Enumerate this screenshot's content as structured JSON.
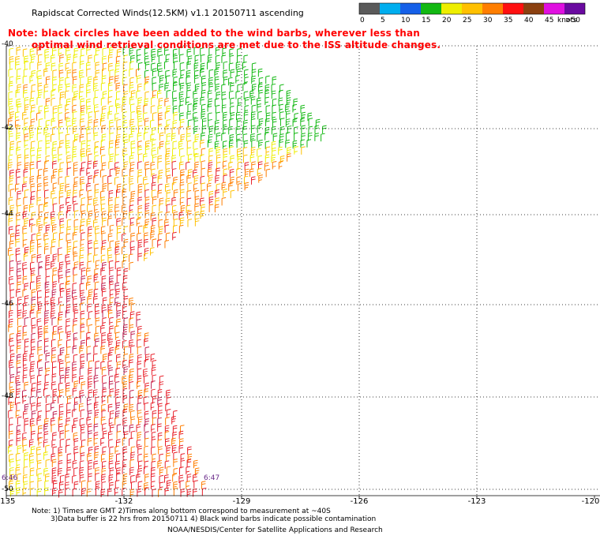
{
  "title": "Rapidscat Corrected Winds(12.5KM) v1.1 20150711 ascending",
  "note_red": [
    "Note: black circles have been added to the wind barbs, wherever less than",
    "optimal wind retrieval conditions are met due to the ISS altitude changes."
  ],
  "colorbar": {
    "labels": [
      "0",
      "5",
      "10",
      "15",
      "20",
      "25",
      "30",
      "35",
      "40",
      "45",
      ">50"
    ],
    "unit": "knots",
    "colors": [
      "#5a5a5a",
      "#00aeef",
      "#1560e8",
      "#12b812",
      "#eeee00",
      "#ffc000",
      "#ff7e00",
      "#ff1010",
      "#8b4010",
      "#e010e0",
      "#6a0aa0"
    ]
  },
  "lon_labels": [
    "-135",
    "-132",
    "-129",
    "-126",
    "-123",
    "-120"
  ],
  "lat_labels": [
    "-40",
    "-42",
    "-44",
    "-46",
    "-48",
    "-50"
  ],
  "time_labels": [
    "6:46",
    "6:47"
  ],
  "footnotes": [
    "Note: 1) Times are GMT 2)Times along bottom correspond to measurement at ~40S",
    "3)Data buffer is 22 hrs from 20150711 4) Black wind barbs indicate possible contamination",
    "NOAA/NESDIS/Center for Satellite Applications and Research"
  ]
}
